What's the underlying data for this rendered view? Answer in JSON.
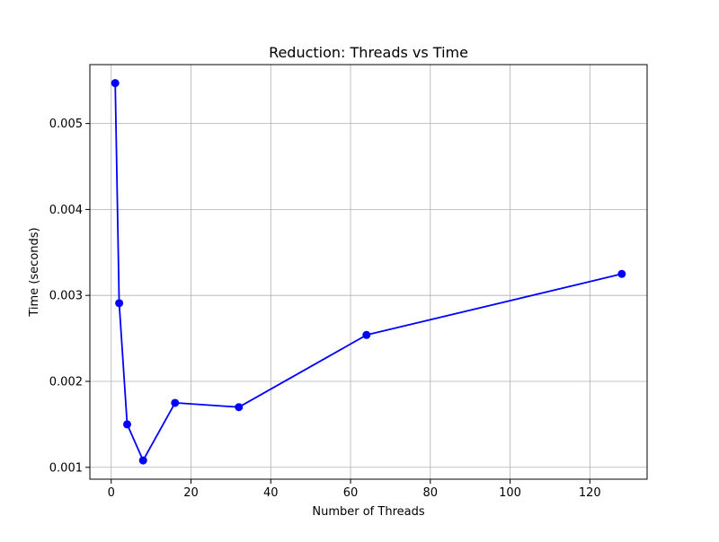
{
  "chart_data": {
    "type": "line",
    "title": "Reduction: Threads vs Time",
    "xlabel": "Number of Threads",
    "ylabel": "Time (seconds)",
    "xlim": [
      -5.35,
      134.35
    ],
    "ylim": [
      0.000862,
      0.005685
    ],
    "xticks": [
      0,
      20,
      40,
      60,
      80,
      100,
      120
    ],
    "xtick_labels": [
      "0",
      "20",
      "40",
      "60",
      "80",
      "100",
      "120"
    ],
    "yticks": [
      0.001,
      0.002,
      0.003,
      0.004,
      0.005
    ],
    "ytick_labels": [
      "0.001",
      "0.002",
      "0.003",
      "0.004",
      "0.005"
    ],
    "grid": true,
    "series": [
      {
        "color": "#0000ff",
        "marker": "circle",
        "x": [
          1,
          2,
          4,
          8,
          16,
          32,
          64,
          128
        ],
        "y": [
          0.00547,
          0.00291,
          0.0015,
          0.00108,
          0.00175,
          0.0017,
          0.00254,
          0.00325
        ]
      }
    ]
  }
}
